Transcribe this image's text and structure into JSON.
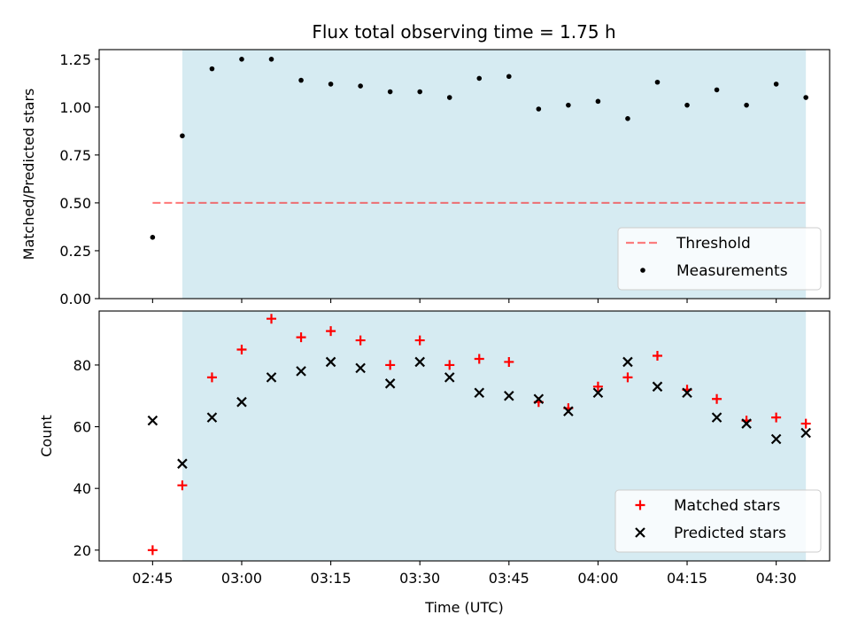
{
  "title": "Flux total observing time = 1.75 h",
  "colors": {
    "shade": "#add8e6",
    "threshold": "#ff0000",
    "measurement": "#000000",
    "matched": "#ff0000",
    "predicted": "#000000"
  },
  "chart_data": [
    {
      "type": "scatter",
      "ylabel": "Matched/Predicted stars",
      "ylim": [
        0,
        1.3
      ],
      "yticks": [
        0,
        0.25,
        0.5,
        0.75,
        1.0,
        1.25
      ],
      "ytick_labels": [
        "0.00",
        "0.25",
        "0.50",
        "0.75",
        "1.00",
        "1.25"
      ],
      "xlim": [
        "02:36",
        "04:39"
      ],
      "shaded_span": [
        "02:50",
        "04:35"
      ],
      "legend_position": "lower-right",
      "threshold": {
        "name": "Threshold",
        "value": 0.5,
        "x_range": [
          "02:45",
          "04:35"
        ],
        "style": "dashed"
      },
      "series": [
        {
          "name": "Measurements",
          "marker": "dot",
          "x": [
            "02:45",
            "02:50",
            "02:55",
            "03:00",
            "03:05",
            "03:10",
            "03:15",
            "03:20",
            "03:25",
            "03:30",
            "03:35",
            "03:40",
            "03:45",
            "03:50",
            "03:55",
            "04:00",
            "04:05",
            "04:10",
            "04:15",
            "04:20",
            "04:25",
            "04:30",
            "04:35"
          ],
          "y": [
            0.32,
            0.85,
            1.2,
            1.25,
            1.25,
            1.14,
            1.12,
            1.11,
            1.08,
            1.08,
            1.05,
            1.15,
            1.16,
            0.99,
            1.01,
            1.03,
            0.94,
            1.13,
            1.01,
            1.09,
            1.01,
            1.12,
            1.05
          ]
        }
      ]
    },
    {
      "type": "scatter",
      "xlabel": "Time (UTC)",
      "ylabel": "Count",
      "ylim": [
        16.5,
        97.5
      ],
      "yticks": [
        20,
        40,
        60,
        80
      ],
      "ytick_labels": [
        "20",
        "40",
        "60",
        "80"
      ],
      "xlim": [
        "02:36",
        "04:39"
      ],
      "xticks": [
        "02:45",
        "03:00",
        "03:15",
        "03:30",
        "03:45",
        "04:00",
        "04:15",
        "04:30"
      ],
      "shaded_span": [
        "02:50",
        "04:35"
      ],
      "legend_position": "lower-right",
      "series": [
        {
          "name": "Matched stars",
          "marker": "plus",
          "x": [
            "02:45",
            "02:50",
            "02:55",
            "03:00",
            "03:05",
            "03:10",
            "03:15",
            "03:20",
            "03:25",
            "03:30",
            "03:35",
            "03:40",
            "03:45",
            "03:50",
            "03:55",
            "04:00",
            "04:05",
            "04:10",
            "04:15",
            "04:20",
            "04:25",
            "04:30",
            "04:35"
          ],
          "y": [
            20,
            41,
            76,
            85,
            95,
            89,
            91,
            88,
            80,
            88,
            80,
            82,
            81,
            68,
            66,
            73,
            76,
            83,
            72,
            69,
            62,
            63,
            61
          ]
        },
        {
          "name": "Predicted stars",
          "marker": "x",
          "x": [
            "02:45",
            "02:50",
            "02:55",
            "03:00",
            "03:05",
            "03:10",
            "03:15",
            "03:20",
            "03:25",
            "03:30",
            "03:35",
            "03:40",
            "03:45",
            "03:50",
            "03:55",
            "04:00",
            "04:05",
            "04:10",
            "04:15",
            "04:20",
            "04:25",
            "04:30",
            "04:35"
          ],
          "y": [
            62,
            48,
            63,
            68,
            76,
            78,
            81,
            79,
            74,
            81,
            76,
            71,
            70,
            69,
            65,
            71,
            81,
            73,
            71,
            63,
            61,
            56,
            58
          ]
        }
      ]
    }
  ]
}
